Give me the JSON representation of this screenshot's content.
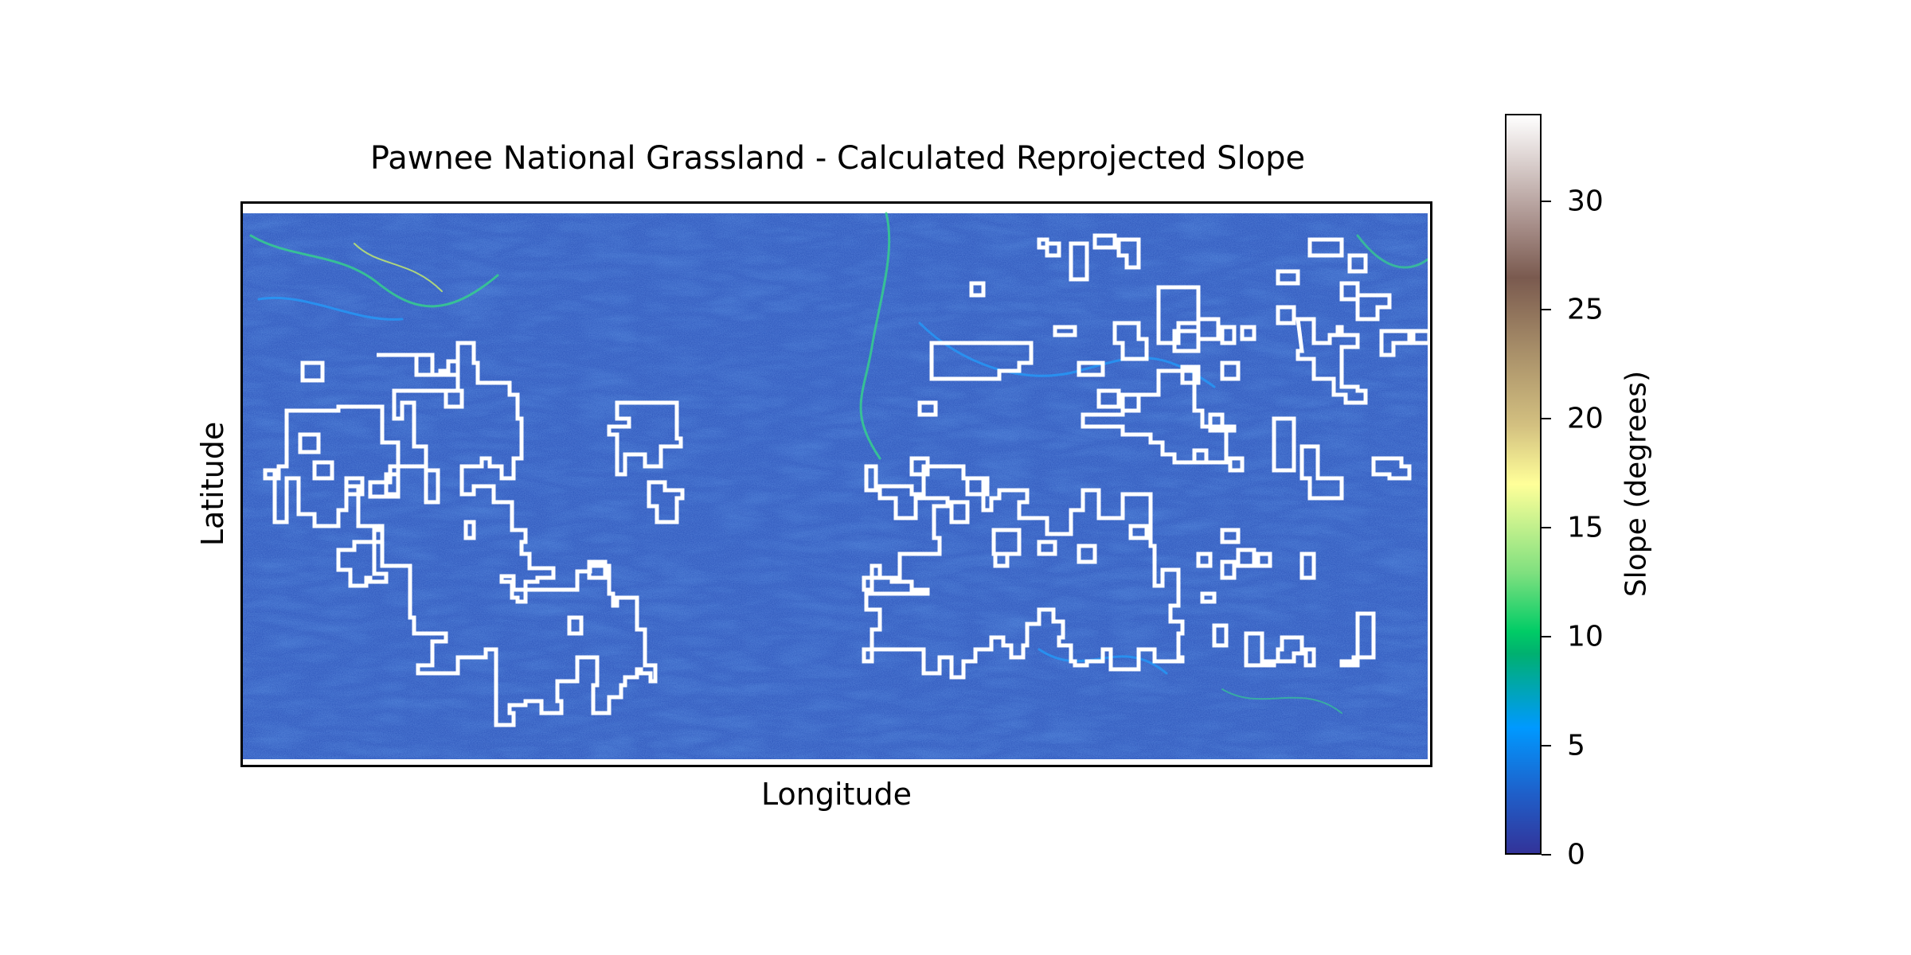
{
  "figure": {
    "title": "Pawnee National Grassland - Calculated Reprojected Slope",
    "xlabel": "Longitude",
    "ylabel": "Latitude"
  },
  "map": {
    "raster": "slope",
    "base_color": "#2a54b8",
    "boundary_color": "#ffffff",
    "highlight_colors": [
      "#1f9fff",
      "#34d58a",
      "#c8ef6a"
    ]
  },
  "colorbar": {
    "label": "Slope (degrees)",
    "ticks": [
      "0",
      "5",
      "10",
      "15",
      "20",
      "25",
      "30"
    ],
    "range": [
      0,
      34
    ],
    "colormap": "terrain"
  }
}
